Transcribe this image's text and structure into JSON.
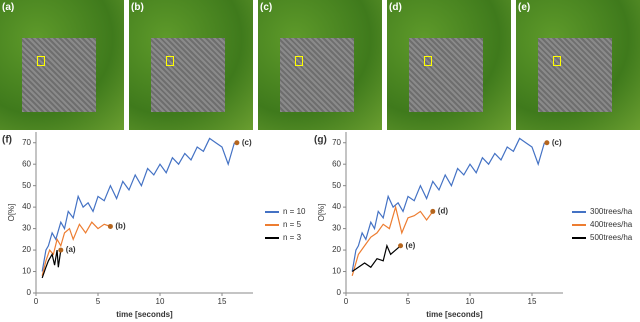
{
  "panels": [
    {
      "label": "(a)"
    },
    {
      "label": "(b)"
    },
    {
      "label": "(c)"
    },
    {
      "label": "(d)"
    },
    {
      "label": "(e)"
    }
  ],
  "chart_data": [
    {
      "type": "line",
      "panel_label": "(f)",
      "x_label": "time [seconds]",
      "y_label": "O[%]",
      "xlim": [
        0,
        17.5
      ],
      "ylim": [
        0,
        75
      ],
      "xticks": [
        0,
        5,
        10,
        15
      ],
      "yticks": [
        0,
        10,
        20,
        30,
        40,
        50,
        60,
        70
      ],
      "series": [
        {
          "name": "n = 10",
          "color": "#4472c4",
          "x": [
            0.5,
            0.8,
            1.0,
            1.3,
            1.6,
            2.0,
            2.3,
            2.6,
            3.0,
            3.4,
            3.8,
            4.2,
            4.6,
            5.0,
            5.5,
            6.0,
            6.5,
            7.0,
            7.5,
            8.0,
            8.5,
            9.0,
            9.5,
            10,
            10.5,
            11,
            11.5,
            12,
            12.5,
            13,
            13.5,
            14,
            14.5,
            15,
            15.5,
            16
          ],
          "values": [
            10,
            20,
            22,
            28,
            25,
            33,
            30,
            38,
            35,
            45,
            40,
            42,
            38,
            45,
            43,
            50,
            44,
            52,
            48,
            55,
            50,
            58,
            55,
            60,
            56,
            63,
            60,
            65,
            62,
            68,
            66,
            72,
            70,
            68,
            60,
            70
          ]
        },
        {
          "name": "n = 5",
          "color": "#ed7d31",
          "x": [
            0.5,
            0.8,
            1.1,
            1.4,
            1.7,
            2.0,
            2.3,
            2.7,
            3.0,
            3.5,
            4.0,
            4.5,
            5.0,
            5.5,
            6.0
          ],
          "values": [
            8,
            15,
            20,
            18,
            25,
            22,
            28,
            30,
            25,
            32,
            28,
            33,
            30,
            32,
            31
          ]
        },
        {
          "name": "n = 3",
          "color": "#000000",
          "x": [
            0.5,
            0.8,
            1.0,
            1.3,
            1.5,
            1.7,
            1.8,
            2.0
          ],
          "values": [
            7,
            12,
            15,
            18,
            13,
            20,
            12,
            20
          ]
        }
      ],
      "annotations": [
        {
          "label": "(a)",
          "x": 2.0,
          "y": 20
        },
        {
          "label": "(b)",
          "x": 6.0,
          "y": 31
        },
        {
          "label": "(c)",
          "x": 16.2,
          "y": 70
        }
      ]
    },
    {
      "type": "line",
      "panel_label": "(g)",
      "x_label": "time [seconds]",
      "y_label": "O[%]",
      "xlim": [
        0,
        17.5
      ],
      "ylim": [
        0,
        75
      ],
      "xticks": [
        0,
        5,
        10,
        15
      ],
      "yticks": [
        0,
        10,
        20,
        30,
        40,
        50,
        60,
        70
      ],
      "series": [
        {
          "name": "300trees/ha",
          "color": "#4472c4",
          "x": [
            0.5,
            0.8,
            1.0,
            1.3,
            1.6,
            2.0,
            2.3,
            2.6,
            3.0,
            3.4,
            3.8,
            4.2,
            4.6,
            5.0,
            5.5,
            6.0,
            6.5,
            7.0,
            7.5,
            8.0,
            8.5,
            9.0,
            9.5,
            10,
            10.5,
            11,
            11.5,
            12,
            12.5,
            13,
            13.5,
            14,
            14.5,
            15,
            15.5,
            16
          ],
          "values": [
            10,
            20,
            22,
            28,
            25,
            33,
            30,
            38,
            35,
            45,
            40,
            42,
            38,
            45,
            43,
            50,
            44,
            52,
            48,
            55,
            50,
            58,
            55,
            60,
            56,
            63,
            60,
            65,
            62,
            68,
            66,
            72,
            70,
            68,
            60,
            70
          ]
        },
        {
          "name": "400trees/ha",
          "color": "#ed7d31",
          "x": [
            0.5,
            1.0,
            1.5,
            2.0,
            2.5,
            3.0,
            3.5,
            4.0,
            4.5,
            5.0,
            5.5,
            6.0,
            6.5,
            7.0
          ],
          "values": [
            8,
            18,
            22,
            26,
            28,
            32,
            30,
            40,
            28,
            35,
            36,
            38,
            34,
            38
          ]
        },
        {
          "name": "500trees/ha",
          "color": "#000000",
          "x": [
            0.5,
            1.0,
            1.5,
            2.0,
            2.5,
            3.0,
            3.3,
            3.6,
            4.0,
            4.4
          ],
          "values": [
            10,
            12,
            14,
            12,
            16,
            15,
            22,
            18,
            20,
            22
          ]
        }
      ],
      "annotations": [
        {
          "label": "(e)",
          "x": 4.4,
          "y": 22
        },
        {
          "label": "(d)",
          "x": 7.0,
          "y": 38
        },
        {
          "label": "(c)",
          "x": 16.2,
          "y": 70
        }
      ]
    }
  ]
}
